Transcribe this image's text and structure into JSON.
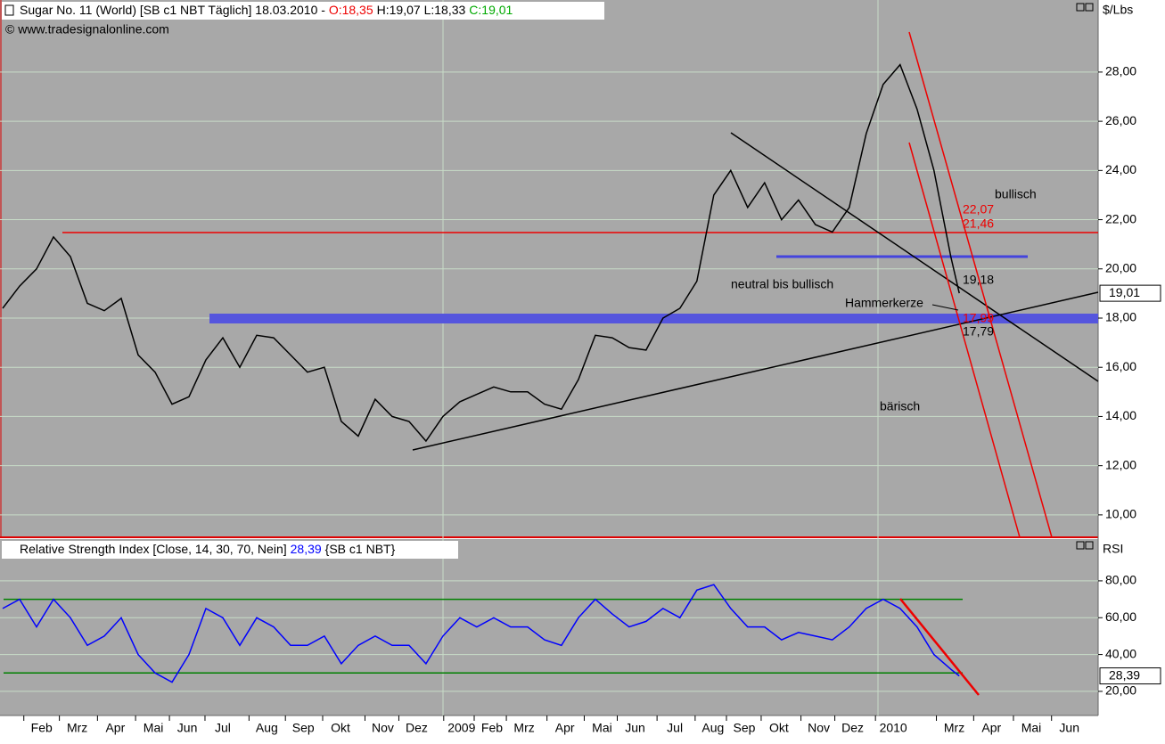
{
  "header": {
    "title": "Sugar No. 11 (World) [SB c1 NBT  Täglich] 18.03.2010 - ",
    "open": "O:18,35",
    "high_low": "H:19,07 L:18,33",
    "close": "C:19,01",
    "copyright": "© www.tradesignalonline.com"
  },
  "chart_data": [
    {
      "type": "line",
      "unit": "$/Lbs",
      "color": "#000000",
      "x": [
        0,
        2,
        4,
        6,
        8,
        10,
        12,
        14,
        16,
        18,
        20,
        22,
        24,
        26,
        28,
        30,
        32,
        34,
        36,
        38,
        40,
        42,
        44,
        46,
        48,
        50,
        52,
        54,
        56,
        58,
        60,
        62,
        64,
        66,
        68,
        70,
        72,
        74,
        76,
        78,
        80,
        82,
        84,
        86,
        88,
        90,
        92,
        94,
        96,
        98,
        100,
        102,
        104,
        106,
        108,
        110,
        112,
        113
      ],
      "values": [
        18.4,
        19.3,
        20.0,
        21.3,
        20.5,
        18.6,
        18.3,
        18.8,
        16.5,
        15.8,
        14.5,
        14.8,
        16.3,
        17.2,
        16.0,
        17.3,
        17.2,
        16.5,
        15.8,
        16.0,
        13.8,
        13.2,
        14.7,
        14.0,
        13.8,
        13.0,
        14.0,
        14.6,
        14.9,
        15.2,
        15.0,
        15.0,
        14.5,
        14.3,
        15.5,
        17.3,
        17.2,
        16.8,
        16.7,
        18.0,
        18.4,
        19.5,
        23.0,
        24.0,
        22.5,
        23.5,
        22.0,
        22.8,
        21.8,
        21.5,
        22.5,
        25.5,
        27.5,
        28.3,
        26.5,
        24.0,
        20.5,
        19.01
      ],
      "last_label": "19,01",
      "xlim": [
        -0.32,
        129.4
      ],
      "ylim": [
        9.09,
        30.93
      ],
      "yticks": [
        {
          "value": 10,
          "label": "10,00"
        },
        {
          "value": 12,
          "label": "12,00"
        },
        {
          "value": 14,
          "label": "14,00"
        },
        {
          "value": 16,
          "label": "16,00"
        },
        {
          "value": 18,
          "label": "18,00"
        },
        {
          "value": 20,
          "label": "20,00"
        },
        {
          "value": 22,
          "label": "22,00"
        },
        {
          "value": 24,
          "label": "24,00"
        },
        {
          "value": 26,
          "label": "26,00"
        },
        {
          "value": 28,
          "label": "28,00"
        }
      ],
      "grid": true,
      "annotations": [
        "bullisch",
        "22,07",
        "21,46",
        "19,18",
        "neutral bis bullisch",
        "Hammerkerze",
        "17,99",
        "17,79",
        "bärisch"
      ]
    },
    {
      "type": "line",
      "unit": "RSI",
      "color": "#0000ff",
      "title": "Relative Strength Index [Close, 14, 30, 70, Nein]",
      "title_value": "28,39",
      "title_suffix": "{SB c1 NBT}",
      "x": [
        0,
        2,
        4,
        6,
        8,
        10,
        12,
        14,
        16,
        18,
        20,
        22,
        24,
        26,
        28,
        30,
        32,
        34,
        36,
        38,
        40,
        42,
        44,
        46,
        48,
        50,
        52,
        54,
        56,
        58,
        60,
        62,
        64,
        66,
        68,
        70,
        72,
        74,
        76,
        78,
        80,
        82,
        84,
        86,
        88,
        90,
        92,
        94,
        96,
        98,
        100,
        102,
        104,
        106,
        108,
        110,
        112,
        113
      ],
      "values": [
        65,
        70,
        55,
        70,
        60,
        45,
        50,
        60,
        40,
        30,
        25,
        40,
        65,
        60,
        45,
        60,
        55,
        45,
        45,
        50,
        35,
        45,
        50,
        45,
        45,
        35,
        50,
        60,
        55,
        60,
        55,
        55,
        48,
        45,
        60,
        70,
        62,
        55,
        58,
        65,
        60,
        75,
        78,
        65,
        55,
        55,
        48,
        52,
        50,
        48,
        55,
        65,
        70,
        65,
        55,
        40,
        32,
        28.39
      ],
      "levels": [
        30,
        70
      ],
      "level_color": "#008000",
      "xlim": [
        -0.32,
        129.4
      ],
      "ylim": [
        6.9,
        102.7
      ],
      "yticks": [
        {
          "value": 20,
          "label": "20,00"
        },
        {
          "value": 40,
          "label": "40,00"
        },
        {
          "value": 60,
          "label": "60,00"
        },
        {
          "value": 80,
          "label": "80,00"
        }
      ],
      "grid": true,
      "xticks": [
        {
          "value": 4.6,
          "label": "Feb"
        },
        {
          "value": 8.8,
          "label": "Mrz"
        },
        {
          "value": 13.3,
          "label": "Apr"
        },
        {
          "value": 17.8,
          "label": "Mai"
        },
        {
          "value": 21.8,
          "label": "Jun"
        },
        {
          "value": 26,
          "label": "Jul"
        },
        {
          "value": 31.2,
          "label": "Aug"
        },
        {
          "value": 35.5,
          "label": "Sep"
        },
        {
          "value": 39.9,
          "label": "Okt"
        },
        {
          "value": 44.9,
          "label": "Nov"
        },
        {
          "value": 48.9,
          "label": "Dez"
        },
        {
          "value": 54.2,
          "label": "2009"
        },
        {
          "value": 57.8,
          "label": "Feb"
        },
        {
          "value": 61.6,
          "label": "Mrz"
        },
        {
          "value": 66.4,
          "label": "Apr"
        },
        {
          "value": 70.8,
          "label": "Mai"
        },
        {
          "value": 74.7,
          "label": "Jun"
        },
        {
          "value": 79.4,
          "label": "Jul"
        },
        {
          "value": 83.9,
          "label": "Aug"
        },
        {
          "value": 87.6,
          "label": "Sep"
        },
        {
          "value": 91.7,
          "label": "Okt"
        },
        {
          "value": 96.4,
          "label": "Nov"
        },
        {
          "value": 100.4,
          "label": "Dez"
        },
        {
          "value": 105.2,
          "label": "2010"
        },
        {
          "value": 112.4,
          "label": "Mrz"
        },
        {
          "value": 116.8,
          "label": "Apr"
        },
        {
          "value": 121.5,
          "label": "Mai"
        },
        {
          "value": 126,
          "label": "Jun"
        }
      ]
    }
  ]
}
